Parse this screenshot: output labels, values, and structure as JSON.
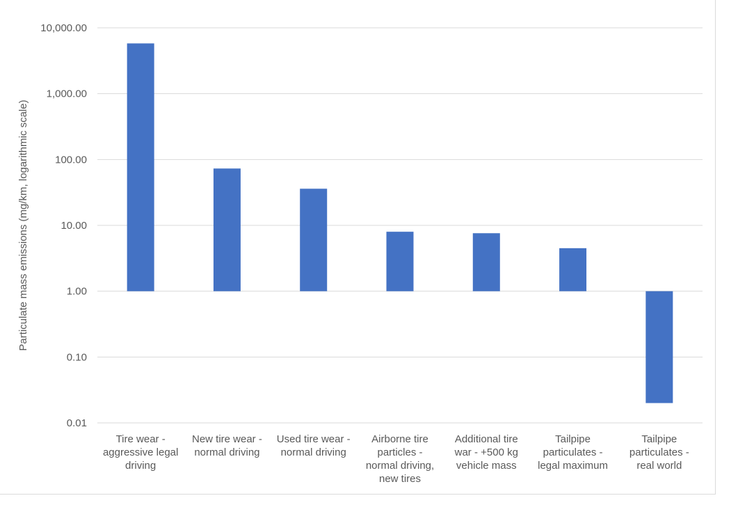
{
  "chart_data": {
    "type": "bar",
    "title": "",
    "xlabel": "",
    "ylabel": "Particulate mass emissions (mg/km, logarithmic scale)",
    "y_scale": "log",
    "ylim": [
      0.01,
      10000
    ],
    "bar_baseline": 1,
    "y_ticks": [
      0.01,
      0.1,
      1,
      10,
      100,
      1000,
      10000
    ],
    "y_tick_labels": [
      "0.01",
      "0.10",
      "1.00",
      "10.00",
      "100.00",
      "1,000.00",
      "10,000.00"
    ],
    "grid": true,
    "categories": [
      [
        "Tire wear -",
        "aggressive legal",
        "driving"
      ],
      [
        "New tire wear -",
        "normal driving"
      ],
      [
        "Used tire wear -",
        "normal driving"
      ],
      [
        "Airborne tire",
        "particles -",
        "normal driving,",
        "new tires"
      ],
      [
        "Additional tire",
        "war - +500 kg",
        "vehicle mass"
      ],
      [
        "Tailpipe",
        "particulates -",
        "legal maximum"
      ],
      [
        "Tailpipe",
        "particulates -",
        "real world"
      ]
    ],
    "values": [
      5800,
      73,
      36,
      8,
      7.6,
      4.5,
      0.02
    ],
    "bar_color": "#4472c4",
    "grid_color": "#d9d9d9",
    "text_color": "#595959"
  }
}
